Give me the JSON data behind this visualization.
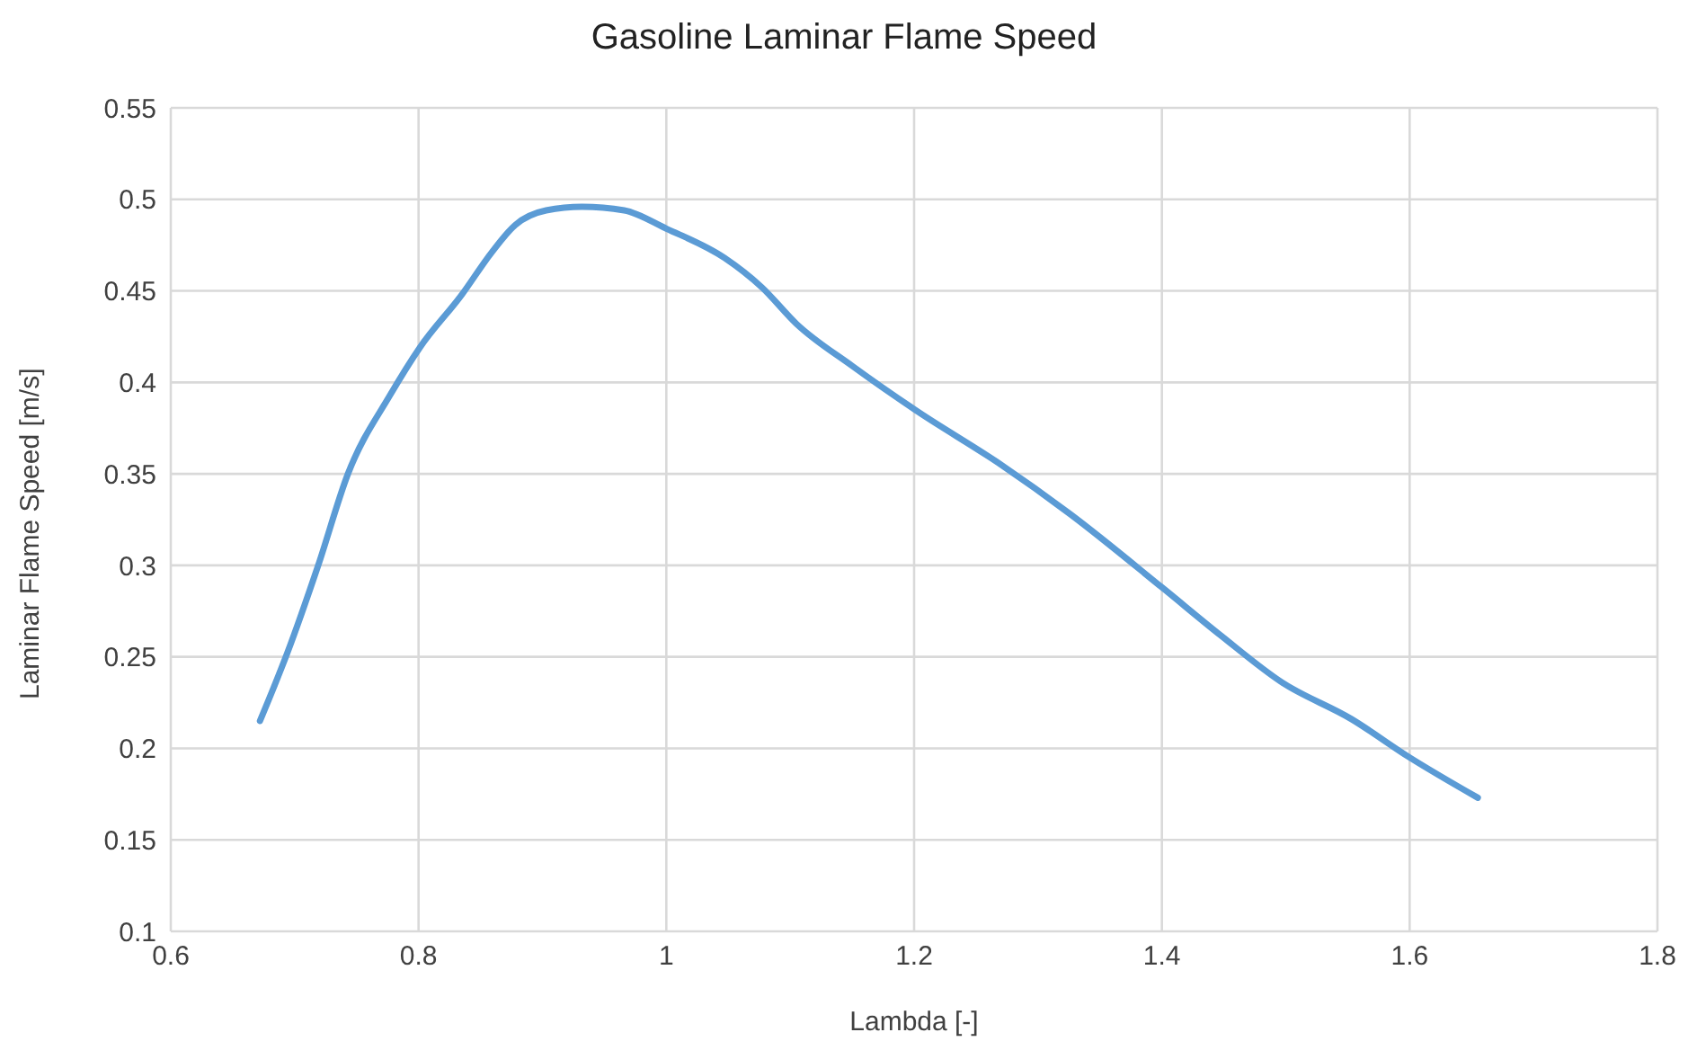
{
  "chart_data": {
    "type": "line",
    "title": "Gasoline Laminar Flame Speed",
    "xlabel": "Lambda [-]",
    "ylabel": "Laminar Flame Speed [m/s]",
    "x": [
      0.672,
      0.694,
      0.719,
      0.743,
      0.777,
      0.801,
      0.835,
      0.859,
      0.878,
      0.903,
      0.932,
      0.966,
      1.0,
      1.047,
      1.077,
      1.105,
      1.15,
      1.203,
      1.268,
      1.326,
      1.4,
      1.447,
      1.497,
      1.553,
      1.6,
      1.655
    ],
    "series": [
      {
        "color": "#5b9bd5",
        "values": [
          0.215,
          0.252,
          0.3,
          0.35,
          0.393,
          0.419,
          0.448,
          0.471,
          0.486,
          0.494,
          0.496,
          0.494,
          0.484,
          0.468,
          0.452,
          0.432,
          0.409,
          0.384,
          0.356,
          0.328,
          0.288,
          0.262,
          0.236,
          0.216,
          0.195,
          0.173
        ]
      }
    ],
    "xlim": [
      0.6,
      1.8
    ],
    "xticks": [
      0.6,
      0.8,
      1,
      1.2,
      1.4,
      1.6,
      1.8
    ],
    "ylim": [
      0.1,
      0.55
    ],
    "yticks": [
      0.1,
      0.15,
      0.2,
      0.25,
      0.3,
      0.35,
      0.4,
      0.45,
      0.5,
      0.55
    ],
    "grid": true,
    "marker": "none",
    "line_style": "solid"
  }
}
